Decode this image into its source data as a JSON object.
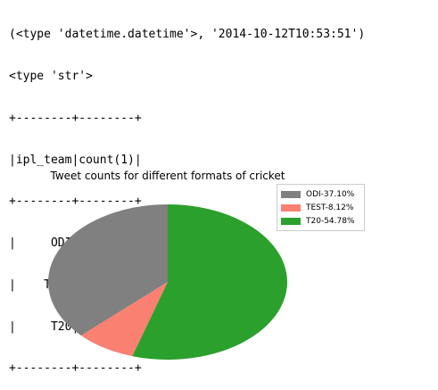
{
  "console": {
    "lines": [
      "(<type 'datetime.datetime'>, '2014-10-12T10:53:51')",
      "<type 'str'>",
      "+--------+--------+",
      "|ipl_team|count(1)|",
      "+--------+--------+",
      "|     ODI|     256|",
      "|    TEST|      56|",
      "|     T20|     378|",
      "+--------+--------+"
    ]
  },
  "chart_data": {
    "type": "pie",
    "title": "Tweet counts for different formats of cricket",
    "categories": [
      "ODI",
      "TEST",
      "T20"
    ],
    "values": [
      256,
      56,
      378
    ],
    "legend_labels": [
      "ODI-37.10%",
      "TEST-8.12%",
      "T20-54.78%"
    ],
    "colors": [
      "#808080",
      "#fa8072",
      "#2ca02c"
    ],
    "legend_position": "top-right",
    "start_angle_deg": 90,
    "direction": "counterclockwise"
  }
}
